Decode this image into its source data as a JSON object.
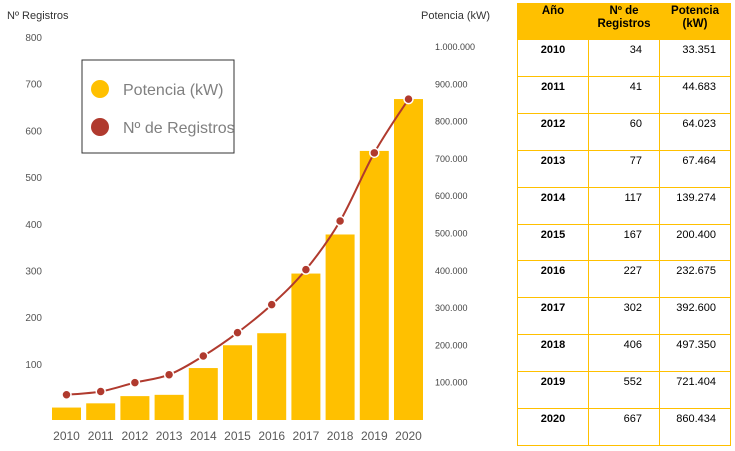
{
  "chart_data": {
    "type": "bar+line",
    "categories": [
      "2010",
      "2011",
      "2012",
      "2013",
      "2014",
      "2015",
      "2016",
      "2017",
      "2018",
      "2019",
      "2020"
    ],
    "series": [
      {
        "name": "Potencia (kW)",
        "type": "bar",
        "axis": "right",
        "color": "#ffc000",
        "values": [
          33351,
          44683,
          64023,
          67464,
          139274,
          200400,
          232675,
          392600,
          497350,
          721404,
          860434
        ]
      },
      {
        "name": "Nº de Registros",
        "type": "line",
        "axis": "left",
        "color": "#b03a2e",
        "values": [
          34,
          41,
          60,
          77,
          117,
          167,
          227,
          302,
          406,
          552,
          667
        ]
      }
    ],
    "y_left": {
      "label": "Nº Registros",
      "ticks": [
        "100",
        "200",
        "300",
        "400",
        "500",
        "600",
        "700",
        "800"
      ],
      "range": [
        -20,
        800
      ]
    },
    "y_right": {
      "label": "Potencia (kW)",
      "ticks": [
        "100.000",
        "200.000",
        "300.000",
        "400.000",
        "500.000",
        "600.000",
        "700.000",
        "800.000",
        "900.000",
        "1.000.000"
      ],
      "range": [
        0,
        1000000
      ]
    },
    "legend": {
      "placement": "top-left",
      "items": [
        "Potencia (kW)",
        "Nº de Registros"
      ]
    },
    "grid": false
  },
  "table": {
    "headers": {
      "year": "Año",
      "registros_1": "Nº de",
      "registros_2": "Registros",
      "potencia_1": "Potencia",
      "potencia_2": "(kW)"
    },
    "rows": [
      {
        "year": "2010",
        "registros": "34",
        "potencia": "33.351"
      },
      {
        "year": "2011",
        "registros": "41",
        "potencia": "44.683"
      },
      {
        "year": "2012",
        "registros": "60",
        "potencia": "64.023"
      },
      {
        "year": "2013",
        "registros": "77",
        "potencia": "67.464"
      },
      {
        "year": "2014",
        "registros": "117",
        "potencia": "139.274"
      },
      {
        "year": "2015",
        "registros": "167",
        "potencia": "200.400"
      },
      {
        "year": "2016",
        "registros": "227",
        "potencia": "232.675"
      },
      {
        "year": "2017",
        "registros": "302",
        "potencia": "392.600"
      },
      {
        "year": "2018",
        "registros": "406",
        "potencia": "497.350"
      },
      {
        "year": "2019",
        "registros": "552",
        "potencia": "721.404"
      },
      {
        "year": "2020",
        "registros": "667",
        "potencia": "860.434"
      }
    ],
    "border_color": "#ffc000",
    "header_color": "#ffc000"
  }
}
